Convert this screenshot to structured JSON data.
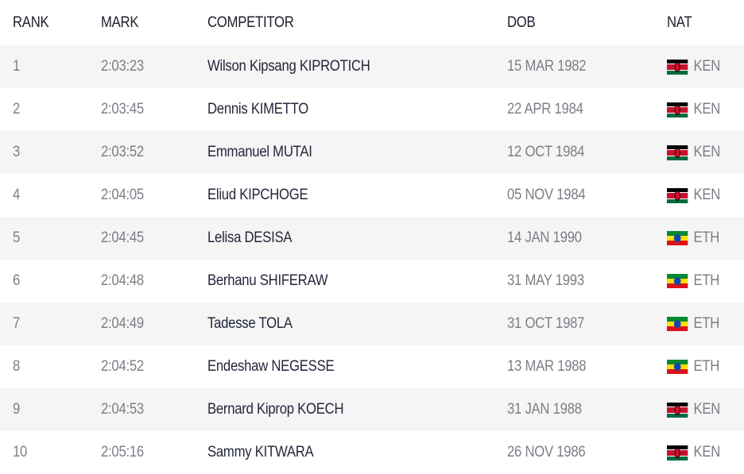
{
  "header": {
    "rank": "RANK",
    "mark": "MARK",
    "competitor": "COMPETITOR",
    "dob": "DOB",
    "nat": "NAT"
  },
  "flags": {
    "KEN": {
      "icon": "kenya-flag-icon",
      "bands": [
        "#000000",
        "#ffffff",
        "#c8102e",
        "#ffffff",
        "#006b3f"
      ]
    },
    "ETH": {
      "icon": "ethiopia-flag-icon",
      "bands": [
        "#078930",
        "#fcdd09",
        "#da121a"
      ]
    }
  },
  "rows": [
    {
      "rank": "1",
      "mark": "2:03:23",
      "competitor": "Wilson Kipsang KIPROTICH",
      "dob": "15 MAR 1982",
      "nat": "KEN"
    },
    {
      "rank": "2",
      "mark": "2:03:45",
      "competitor": "Dennis KIMETTO",
      "dob": "22 APR 1984",
      "nat": "KEN"
    },
    {
      "rank": "3",
      "mark": "2:03:52",
      "competitor": "Emmanuel MUTAI",
      "dob": "12 OCT 1984",
      "nat": "KEN"
    },
    {
      "rank": "4",
      "mark": "2:04:05",
      "competitor": "Eliud KIPCHOGE",
      "dob": "05 NOV 1984",
      "nat": "KEN"
    },
    {
      "rank": "5",
      "mark": "2:04:45",
      "competitor": "Lelisa DESISA",
      "dob": "14 JAN 1990",
      "nat": "ETH"
    },
    {
      "rank": "6",
      "mark": "2:04:48",
      "competitor": "Berhanu SHIFERAW",
      "dob": "31 MAY 1993",
      "nat": "ETH"
    },
    {
      "rank": "7",
      "mark": "2:04:49",
      "competitor": "Tadesse TOLA",
      "dob": "31 OCT 1987",
      "nat": "ETH"
    },
    {
      "rank": "8",
      "mark": "2:04:52",
      "competitor": "Endeshaw NEGESSE",
      "dob": "13 MAR 1988",
      "nat": "ETH"
    },
    {
      "rank": "9",
      "mark": "2:04:53",
      "competitor": "Bernard Kiprop KOECH",
      "dob": "31 JAN 1988",
      "nat": "KEN"
    },
    {
      "rank": "10",
      "mark": "2:05:16",
      "competitor": "Sammy KITWARA",
      "dob": "26 NOV 1986",
      "nat": "KEN"
    }
  ]
}
